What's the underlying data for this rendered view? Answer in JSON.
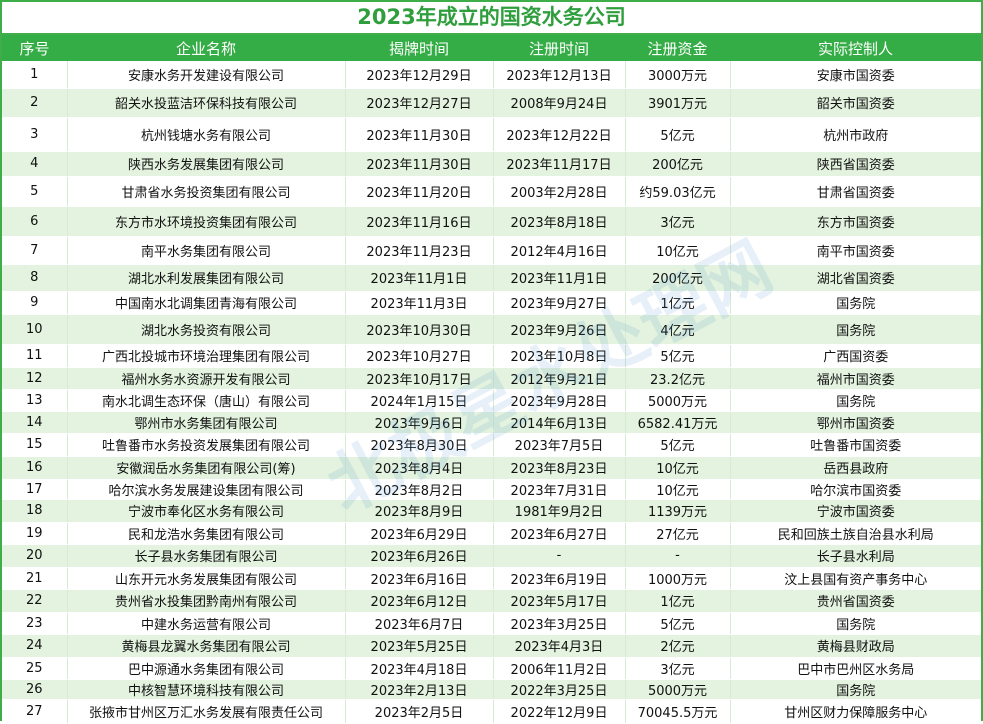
{
  "title": "2023年成立的国资水务公司",
  "headers": [
    "序号",
    "企业名称",
    "揭牌时间",
    "注册时间",
    "注册资金",
    "实际控制人"
  ],
  "rows": [
    [
      "1",
      "安康水务开发建设有限公司",
      "2023年12月29日",
      "2023年12月13日",
      "3000万元",
      "安康市国资委"
    ],
    [
      "2",
      "韶关水投蓝洁环保科技有限公司",
      "2023年12月27日",
      "2008年9月24日",
      "3901万元",
      "韶关市国资委"
    ],
    [
      "3",
      "杭州钱塘水务有限公司",
      "2023年11月30日",
      "2023年12月22日",
      "5亿元",
      "杭州市政府"
    ],
    [
      "4",
      "陕西水务发展集团有限公司",
      "2023年11月30日",
      "2023年11月17日",
      "200亿元",
      "陕西省国资委"
    ],
    [
      "5",
      "甘肃省水务投资集团有限公司",
      "2023年11月20日",
      "2003年2月28日",
      "约59.03亿元",
      "甘肃省国资委"
    ],
    [
      "6",
      "东方市水环境投资集团有限公司",
      "2023年11月16日",
      "2023年8月18日",
      "3亿元",
      "东方市国资委"
    ],
    [
      "7",
      "南平水务集团有限公司",
      "2023年11月23日",
      "2012年4月16日",
      "10亿元",
      "南平市国资委"
    ],
    [
      "8",
      "湖北水利发展集团有限公司",
      "2023年11月1日",
      "2023年11月1日",
      "200亿元",
      "湖北省国资委"
    ],
    [
      "9",
      "中国南水北调集团青海有限公司",
      "2023年11月3日",
      "2023年9月27日",
      "1亿元",
      "国务院"
    ],
    [
      "10",
      "湖北水务投资有限公司",
      "2023年10月30日",
      "2023年9月26日",
      "4亿元",
      "国务院"
    ],
    [
      "11",
      "广西北投城市环境治理集团有限公司",
      "2023年10月27日",
      "2023年10月8日",
      "5亿元",
      "广西国资委"
    ],
    [
      "12",
      "福州水务水资源开发有限公司",
      "2023年10月17日",
      "2012年9月21日",
      "23.2亿元",
      "福州市国资委"
    ],
    [
      "13",
      "南水北调生态环保（唐山）有限公司",
      "2024年1月15日",
      "2023年9月28日",
      "5000万元",
      "国务院"
    ],
    [
      "14",
      "鄂州市水务集团有限公司",
      "2023年9月6日",
      "2014年6月13日",
      "6582.41万元",
      "鄂州市国资委"
    ],
    [
      "15",
      "吐鲁番市水务投资发展集团有限公司",
      "2023年8月30日",
      "2023年7月5日",
      "5亿元",
      "吐鲁番市国资委"
    ],
    [
      "16",
      "安徽润岳水务集团有限公司(筹)",
      "2023年8月4日",
      "2023年8月23日",
      "10亿元",
      "岳西县政府"
    ],
    [
      "17",
      "哈尔滨水务发展建设集团有限公司",
      "2023年8月2日",
      "2023年7月31日",
      "10亿元",
      "哈尔滨市国资委"
    ],
    [
      "18",
      "宁波市奉化区水务有限公司",
      "2023年8月9日",
      "1981年9月2日",
      "1139万元",
      "宁波市国资委"
    ],
    [
      "19",
      "民和龙浩水务集团有限公司",
      "2023年6月29日",
      "2023年6月27日",
      "27亿元",
      "民和回族土族自治县水利局"
    ],
    [
      "20",
      "长子县水务集团有限公司",
      "2023年6月26日",
      "-",
      "-",
      "长子县水利局"
    ],
    [
      "21",
      "山东开元水务发展集团有限公司",
      "2023年6月16日",
      "2023年6月19日",
      "1000万元",
      "汶上县国有资产事务中心"
    ],
    [
      "22",
      "贵州省水投集团黔南州有限公司",
      "2023年6月12日",
      "2023年5月17日",
      "1亿元",
      "贵州省国资委"
    ],
    [
      "23",
      "中建水务运营有限公司",
      "2023年6月7日",
      "2023年3月25日",
      "5亿元",
      "国务院"
    ],
    [
      "24",
      "黄梅县龙翼水务集团有限公司",
      "2023年5月25日",
      "2023年4月3日",
      "2亿元",
      "黄梅县财政局"
    ],
    [
      "25",
      "巴中源通水务集团有限公司",
      "2023年4月18日",
      "2006年11月2日",
      "3亿元",
      "巴中市巴州区水务局"
    ],
    [
      "26",
      "中核智慧环境科技有限公司",
      "2023年2月13日",
      "2022年3月25日",
      "5000万元",
      "国务院"
    ],
    [
      "27",
      "张掖市甘州区万汇水务发展有限责任公司",
      "2023年2月5日",
      "2022年12月9日",
      "70045.5万元",
      "甘州区财力保障服务中心"
    ]
  ],
  "watermark": "北极星水处理网",
  "colors": {
    "header_bg": "#35ad46",
    "title": "#2f9e3d",
    "alt_row": "#e3f3df"
  }
}
